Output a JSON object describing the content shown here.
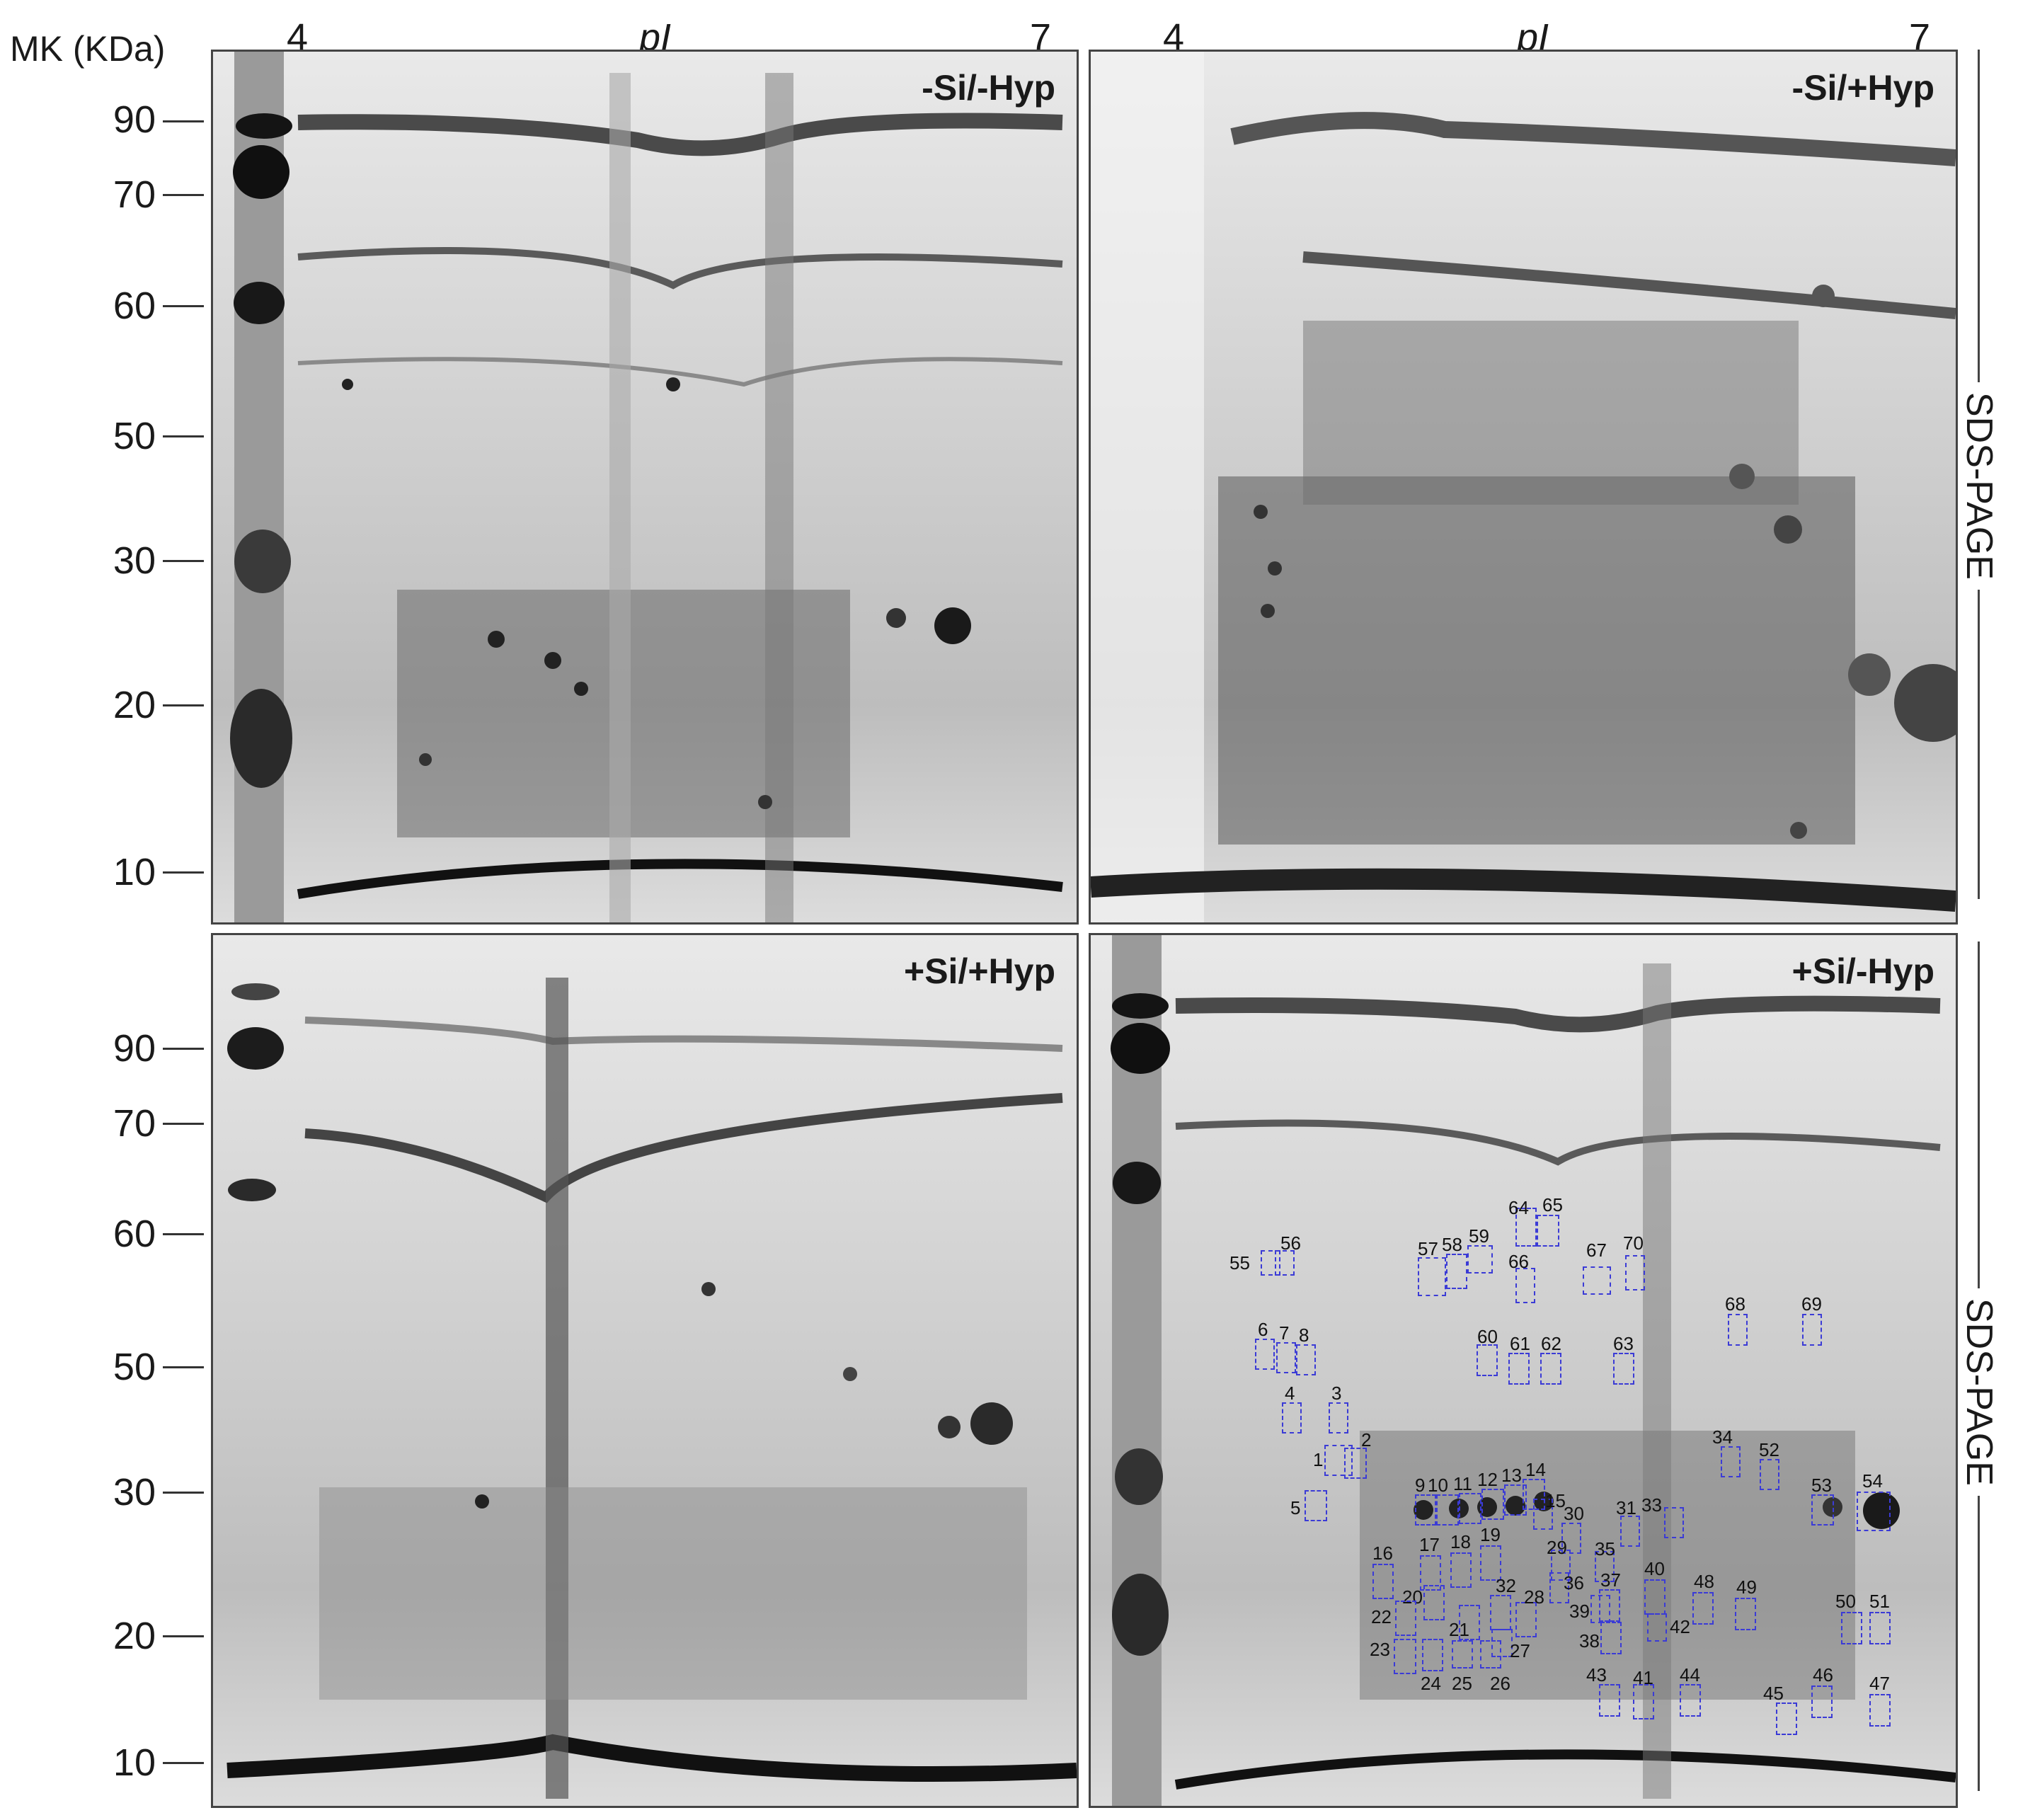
{
  "header": {
    "mk_title": "MK (KDa)",
    "ph_low": "4",
    "ph_mid": "pI",
    "ph_high": "7"
  },
  "markers": [
    "90",
    "70",
    "60",
    "50",
    "30",
    "20",
    "10"
  ],
  "panels": {
    "top_left": {
      "condition": "-Si/-Hyp"
    },
    "top_right": {
      "condition": "-Si/+Hyp"
    },
    "bottom_left": {
      "condition": "+Si/+Hyp"
    },
    "bottom_right": {
      "condition": "+Si/-Hyp"
    }
  },
  "side_label": "SDS-PAGE",
  "spots": [
    "1",
    "2",
    "3",
    "4",
    "5",
    "6",
    "7",
    "8",
    "9",
    "10",
    "11",
    "12",
    "13",
    "14",
    "15",
    "16",
    "17",
    "18",
    "19",
    "20",
    "21",
    "22",
    "23",
    "24",
    "25",
    "26",
    "27",
    "28",
    "29",
    "30",
    "31",
    "32",
    "33",
    "34",
    "35",
    "36",
    "37",
    "38",
    "39",
    "40",
    "41",
    "42",
    "43",
    "44",
    "45",
    "46",
    "47",
    "48",
    "49",
    "50",
    "51",
    "52",
    "53",
    "54",
    "55",
    "56",
    "57",
    "58",
    "59",
    "60",
    "61",
    "62",
    "63",
    "64",
    "65",
    "66",
    "67",
    "68",
    "69",
    "70"
  ]
}
